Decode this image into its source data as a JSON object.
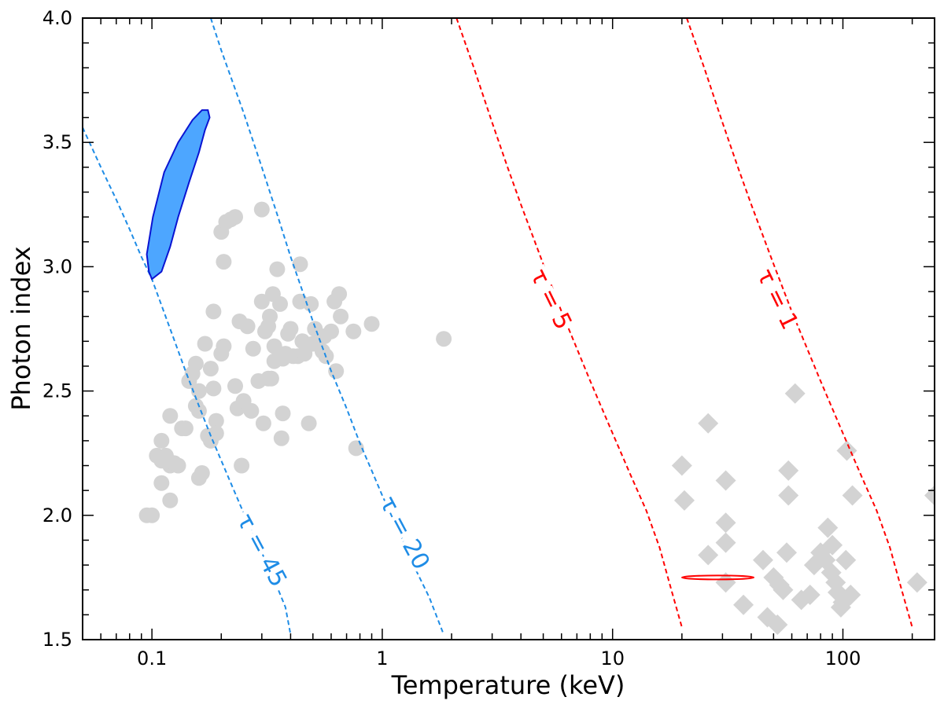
{
  "chart_data": {
    "type": "scatter",
    "xlabel": "Temperature (keV)",
    "ylabel": "Photon index",
    "xscale": "log",
    "xlim": [
      0.05,
      250
    ],
    "ylim": [
      1.5,
      4.0
    ],
    "x_ticks": [
      {
        "value": 0.1,
        "label": "0.1"
      },
      {
        "value": 1,
        "label": "1"
      },
      {
        "value": 10,
        "label": "10"
      },
      {
        "value": 100,
        "label": "100"
      }
    ],
    "y_ticks": [
      {
        "value": 1.5,
        "label": "1.5"
      },
      {
        "value": 2.0,
        "label": "2.0"
      },
      {
        "value": 2.5,
        "label": "2.5"
      },
      {
        "value": 3.0,
        "label": "3.0"
      },
      {
        "value": 3.5,
        "label": "3.5"
      },
      {
        "value": 4.0,
        "label": "4.0"
      }
    ],
    "colors": {
      "blue_curve": "#1e8ce6",
      "red_curve": "#ff0000",
      "contour_fill": "#4da6ff",
      "contour_edge": "#0a14d2",
      "gray_marker": "#d3d3d3"
    },
    "tau_curves": [
      {
        "label": "τ = 45",
        "color": "#1e8ce6",
        "points": [
          [
            0.05,
            3.56
          ],
          [
            0.06,
            3.4
          ],
          [
            0.07,
            3.27
          ],
          [
            0.08,
            3.15
          ],
          [
            0.09,
            3.04
          ],
          [
            0.1,
            2.95
          ],
          [
            0.12,
            2.75
          ],
          [
            0.14,
            2.58
          ],
          [
            0.16,
            2.44
          ],
          [
            0.18,
            2.32
          ],
          [
            0.2,
            2.22
          ],
          [
            0.22,
            2.13
          ],
          [
            0.25,
            2.01
          ],
          [
            0.28,
            1.91
          ],
          [
            0.3,
            1.85
          ],
          [
            0.34,
            1.74
          ],
          [
            0.38,
            1.63
          ],
          [
            0.4,
            1.52
          ]
        ]
      },
      {
        "label": "τ = 20",
        "color": "#1e8ce6",
        "points": [
          [
            0.18,
            4.0
          ],
          [
            0.2,
            3.87
          ],
          [
            0.25,
            3.62
          ],
          [
            0.3,
            3.4
          ],
          [
            0.35,
            3.21
          ],
          [
            0.4,
            3.04
          ],
          [
            0.5,
            2.78
          ],
          [
            0.6,
            2.58
          ],
          [
            0.7,
            2.43
          ],
          [
            0.8,
            2.29
          ],
          [
            0.9,
            2.18
          ],
          [
            1.0,
            2.08
          ],
          [
            1.2,
            1.92
          ],
          [
            1.4,
            1.78
          ],
          [
            1.6,
            1.67
          ],
          [
            1.85,
            1.52
          ]
        ]
      },
      {
        "label": "τ = 5",
        "color": "#ff0000",
        "points": [
          [
            2.1,
            4.0
          ],
          [
            2.5,
            3.8
          ],
          [
            3.0,
            3.58
          ],
          [
            3.5,
            3.4
          ],
          [
            4.0,
            3.25
          ],
          [
            5.0,
            3.01
          ],
          [
            6.0,
            2.82
          ],
          [
            7.0,
            2.67
          ],
          [
            8.0,
            2.54
          ],
          [
            10.0,
            2.33
          ],
          [
            12.0,
            2.16
          ],
          [
            14.0,
            2.02
          ],
          [
            16.0,
            1.87
          ],
          [
            18.0,
            1.7
          ],
          [
            20.0,
            1.55
          ]
        ]
      },
      {
        "label": "τ = 1",
        "color": "#ff0000",
        "points": [
          [
            21,
            4.0
          ],
          [
            25,
            3.8
          ],
          [
            30,
            3.58
          ],
          [
            35,
            3.4
          ],
          [
            40,
            3.25
          ],
          [
            50,
            3.01
          ],
          [
            60,
            2.82
          ],
          [
            70,
            2.67
          ],
          [
            80,
            2.54
          ],
          [
            100,
            2.33
          ],
          [
            120,
            2.16
          ],
          [
            140,
            2.02
          ],
          [
            160,
            1.87
          ],
          [
            180,
            1.7
          ],
          [
            200,
            1.55
          ]
        ]
      }
    ],
    "tau_labels": [
      {
        "text": "τ = 45",
        "color": "#1e8ce6",
        "x": 0.3,
        "y": 1.86,
        "angle": 62
      },
      {
        "text": "τ = 20",
        "color": "#1e8ce6",
        "x": 1.25,
        "y": 1.93,
        "angle": 62
      },
      {
        "text": "τ = 5",
        "color": "#ff0000",
        "x": 5.4,
        "y": 2.87,
        "angle": 64
      },
      {
        "text": "τ = 1",
        "color": "#ff0000",
        "x": 52,
        "y": 2.87,
        "angle": 64
      }
    ],
    "contour_blue": [
      [
        0.1,
        2.95
      ],
      [
        0.11,
        2.98
      ],
      [
        0.12,
        3.08
      ],
      [
        0.13,
        3.2
      ],
      [
        0.145,
        3.34
      ],
      [
        0.16,
        3.46
      ],
      [
        0.17,
        3.55
      ],
      [
        0.178,
        3.6
      ],
      [
        0.175,
        3.63
      ],
      [
        0.165,
        3.63
      ],
      [
        0.15,
        3.59
      ],
      [
        0.13,
        3.5
      ],
      [
        0.113,
        3.38
      ],
      [
        0.101,
        3.2
      ],
      [
        0.095,
        3.05
      ],
      [
        0.097,
        2.98
      ]
    ],
    "ellipse_red": {
      "center_keV": 29,
      "y": 1.75,
      "x_min_keV": 20,
      "x_max_keV": 41,
      "half_height": 0.008
    },
    "circles": [
      [
        0.095,
        2.0
      ],
      [
        0.1,
        2.0
      ],
      [
        0.105,
        2.24
      ],
      [
        0.11,
        2.22
      ],
      [
        0.115,
        2.24
      ],
      [
        0.11,
        2.3
      ],
      [
        0.12,
        2.2
      ],
      [
        0.125,
        2.21
      ],
      [
        0.11,
        2.13
      ],
      [
        0.12,
        2.06
      ],
      [
        0.12,
        2.4
      ],
      [
        0.13,
        2.2
      ],
      [
        0.135,
        2.35
      ],
      [
        0.14,
        2.35
      ],
      [
        0.145,
        2.54
      ],
      [
        0.15,
        2.57
      ],
      [
        0.155,
        2.61
      ],
      [
        0.155,
        2.44
      ],
      [
        0.16,
        2.42
      ],
      [
        0.16,
        2.5
      ],
      [
        0.16,
        2.15
      ],
      [
        0.165,
        2.17
      ],
      [
        0.17,
        2.69
      ],
      [
        0.175,
        2.32
      ],
      [
        0.18,
        2.3
      ],
      [
        0.18,
        2.59
      ],
      [
        0.185,
        2.51
      ],
      [
        0.19,
        2.38
      ],
      [
        0.19,
        2.33
      ],
      [
        0.185,
        2.82
      ],
      [
        0.2,
        2.65
      ],
      [
        0.205,
        2.68
      ],
      [
        0.205,
        3.02
      ],
      [
        0.2,
        3.14
      ],
      [
        0.21,
        3.18
      ],
      [
        0.22,
        3.19
      ],
      [
        0.23,
        3.2
      ],
      [
        0.23,
        2.52
      ],
      [
        0.235,
        2.43
      ],
      [
        0.24,
        2.78
      ],
      [
        0.245,
        2.2
      ],
      [
        0.25,
        2.46
      ],
      [
        0.26,
        2.76
      ],
      [
        0.27,
        2.42
      ],
      [
        0.275,
        2.67
      ],
      [
        0.29,
        2.54
      ],
      [
        0.3,
        2.86
      ],
      [
        0.3,
        3.23
      ],
      [
        0.305,
        2.37
      ],
      [
        0.31,
        2.74
      ],
      [
        0.32,
        2.76
      ],
      [
        0.32,
        2.55
      ],
      [
        0.325,
        2.8
      ],
      [
        0.33,
        2.55
      ],
      [
        0.335,
        2.89
      ],
      [
        0.34,
        2.68
      ],
      [
        0.34,
        2.62
      ],
      [
        0.35,
        2.99
      ],
      [
        0.36,
        2.85
      ],
      [
        0.37,
        2.63
      ],
      [
        0.37,
        2.41
      ],
      [
        0.365,
        2.31
      ],
      [
        0.38,
        2.65
      ],
      [
        0.39,
        2.73
      ],
      [
        0.4,
        2.75
      ],
      [
        0.41,
        2.64
      ],
      [
        0.43,
        2.64
      ],
      [
        0.44,
        2.86
      ],
      [
        0.44,
        3.01
      ],
      [
        0.45,
        2.7
      ],
      [
        0.46,
        2.65
      ],
      [
        0.48,
        2.37
      ],
      [
        0.49,
        2.85
      ],
      [
        0.5,
        2.69
      ],
      [
        0.51,
        2.75
      ],
      [
        0.55,
        2.66
      ],
      [
        0.56,
        2.72
      ],
      [
        0.57,
        2.64
      ],
      [
        0.6,
        2.74
      ],
      [
        0.62,
        2.86
      ],
      [
        0.63,
        2.58
      ],
      [
        0.65,
        2.89
      ],
      [
        0.66,
        2.8
      ],
      [
        0.75,
        2.74
      ],
      [
        0.77,
        2.27
      ],
      [
        0.9,
        2.77
      ],
      [
        1.85,
        2.71
      ]
    ],
    "diamonds": [
      [
        20,
        2.2
      ],
      [
        20.5,
        2.06
      ],
      [
        26,
        2.37
      ],
      [
        26,
        1.84
      ],
      [
        31,
        2.14
      ],
      [
        31,
        1.97
      ],
      [
        31,
        1.89
      ],
      [
        31,
        1.73
      ],
      [
        37,
        1.64
      ],
      [
        45,
        1.82
      ],
      [
        47,
        1.59
      ],
      [
        50,
        1.75
      ],
      [
        52,
        1.56
      ],
      [
        53,
        1.72
      ],
      [
        55,
        1.7
      ],
      [
        57,
        1.85
      ],
      [
        58,
        2.08
      ],
      [
        58,
        2.18
      ],
      [
        62,
        2.49
      ],
      [
        66,
        1.66
      ],
      [
        72,
        1.68
      ],
      [
        75,
        1.8
      ],
      [
        80,
        1.85
      ],
      [
        84,
        1.82
      ],
      [
        86,
        1.95
      ],
      [
        89,
        1.77
      ],
      [
        90,
        1.88
      ],
      [
        93,
        1.73
      ],
      [
        95,
        1.69
      ],
      [
        98,
        1.63
      ],
      [
        100,
        1.65
      ],
      [
        103,
        1.82
      ],
      [
        104,
        2.26
      ],
      [
        108,
        1.68
      ],
      [
        110,
        2.08
      ],
      [
        210,
        1.73
      ],
      [
        250,
        2.08
      ]
    ]
  }
}
